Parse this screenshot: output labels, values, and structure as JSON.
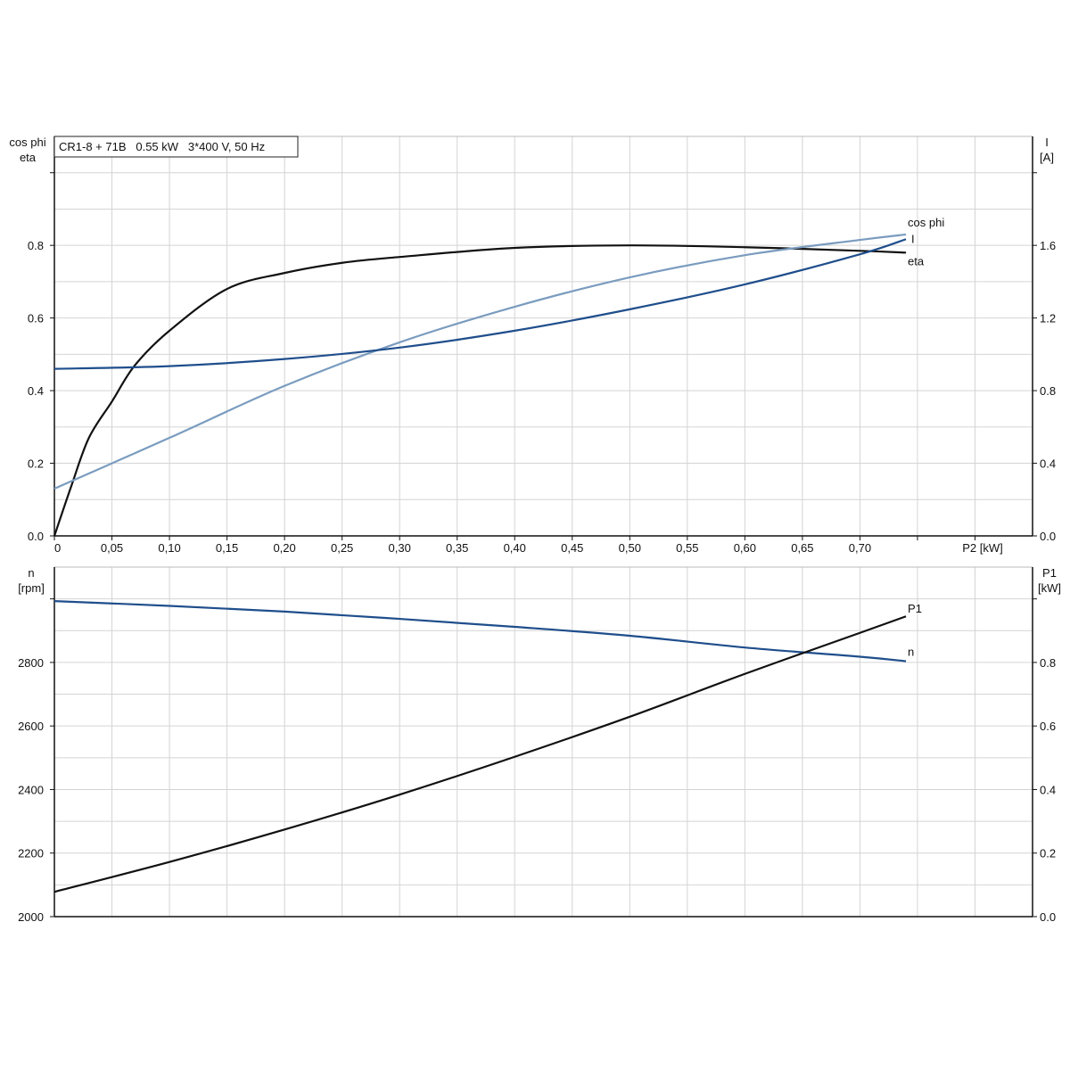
{
  "chart_data": [
    {
      "type": "line",
      "title": "CR1-8 + 71B   0.55 kW   3*400 V, 50 Hz",
      "xlabel": "P2 [kW]",
      "ylabel_left": [
        "cos phi",
        "eta"
      ],
      "ylabel_right": [
        "I",
        "[A]"
      ],
      "xlim": [
        0,
        0.85
      ],
      "ylim_left": [
        0,
        1.1
      ],
      "ylim_right": [
        0,
        2.2
      ],
      "grid": true,
      "x_ticks": [
        "0",
        "0,05",
        "0,10",
        "0,15",
        "0,20",
        "0,25",
        "0,30",
        "0,35",
        "0,40",
        "0,45",
        "0,50",
        "0,55",
        "0,60",
        "0,65",
        "0,70"
      ],
      "y_ticks_left": [
        "0.0",
        "0.2",
        "0.4",
        "0.6",
        "0.8"
      ],
      "y_ticks_right": [
        "0.0",
        "0.4",
        "0.8",
        "1.2",
        "1.6"
      ],
      "series": [
        {
          "name": "eta",
          "axis": "left",
          "color": "#111111",
          "x": [
            0,
            0.015,
            0.03,
            0.05,
            0.07,
            0.1,
            0.15,
            0.2,
            0.25,
            0.3,
            0.4,
            0.5,
            0.6,
            0.7,
            0.74
          ],
          "y": [
            0,
            0.14,
            0.27,
            0.37,
            0.47,
            0.565,
            0.68,
            0.724,
            0.752,
            0.768,
            0.793,
            0.8,
            0.795,
            0.785,
            0.78
          ]
        },
        {
          "name": "cos phi",
          "axis": "left",
          "color": "#7a9cbf",
          "x": [
            0,
            0.1,
            0.2,
            0.3,
            0.4,
            0.5,
            0.6,
            0.7,
            0.74
          ],
          "y": [
            0.13,
            0.27,
            0.413,
            0.533,
            0.631,
            0.712,
            0.773,
            0.815,
            0.83
          ]
        },
        {
          "name": "I",
          "axis": "right",
          "color": "#1f4e8c",
          "x": [
            0,
            0.1,
            0.2,
            0.3,
            0.4,
            0.5,
            0.6,
            0.7,
            0.74
          ],
          "y": [
            0.92,
            0.935,
            0.974,
            1.037,
            1.13,
            1.248,
            1.385,
            1.551,
            1.634
          ]
        }
      ]
    },
    {
      "type": "line",
      "xlabel": "",
      "ylabel_left": [
        "n",
        "[rpm]"
      ],
      "ylabel_right": [
        "P1",
        "[kW]"
      ],
      "xlim": [
        0,
        0.85
      ],
      "ylim_left": [
        2000,
        3100
      ],
      "ylim_right": [
        0,
        1.1
      ],
      "grid": true,
      "y_ticks_left": [
        "2000",
        "2200",
        "2400",
        "2600",
        "2800"
      ],
      "y_ticks_right": [
        "0.0",
        "0.2",
        "0.4",
        "0.6",
        "0.8"
      ],
      "series": [
        {
          "name": "n",
          "axis": "left",
          "color": "#1f4e8c",
          "x": [
            0,
            0.1,
            0.2,
            0.3,
            0.4,
            0.5,
            0.6,
            0.7,
            0.74
          ],
          "y": [
            2993,
            2978,
            2960,
            2937,
            2912,
            2884,
            2847,
            2818,
            2804
          ]
        },
        {
          "name": "P1",
          "axis": "right",
          "color": "#111111",
          "x": [
            0,
            0.1,
            0.2,
            0.3,
            0.4,
            0.5,
            0.6,
            0.7,
            0.74
          ],
          "y": [
            0.078,
            0.172,
            0.274,
            0.384,
            0.503,
            0.629,
            0.764,
            0.893,
            0.945
          ]
        }
      ]
    }
  ]
}
